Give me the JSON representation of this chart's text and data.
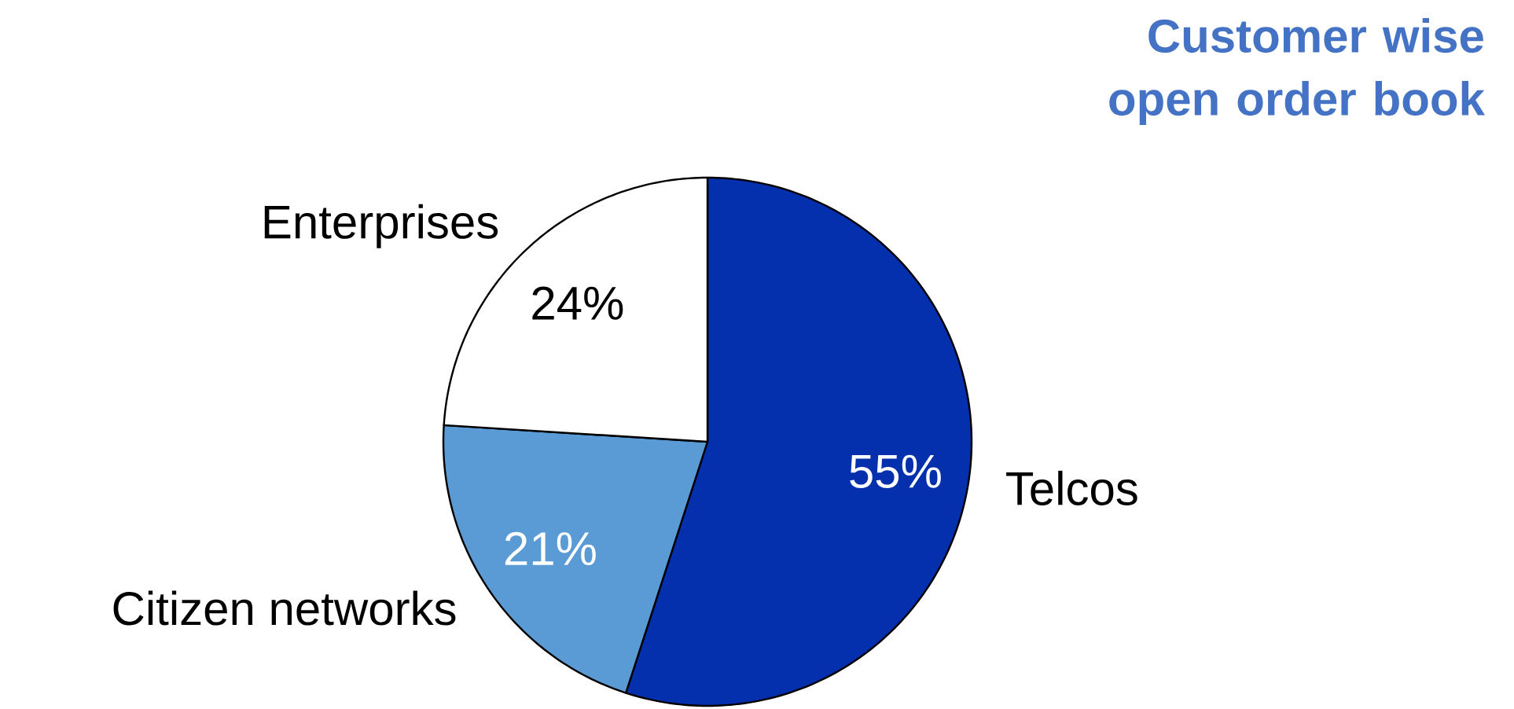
{
  "chart_data": {
    "type": "pie",
    "title": "Customer wise open order book",
    "categories": [
      "Telcos",
      "Citizen networks",
      "Enterprises"
    ],
    "values": [
      55,
      21,
      24
    ],
    "colors": [
      "#0530ad",
      "#5b9bd5",
      "#ffffff"
    ],
    "value_labels": [
      "55%",
      "21%",
      "24%"
    ]
  }
}
